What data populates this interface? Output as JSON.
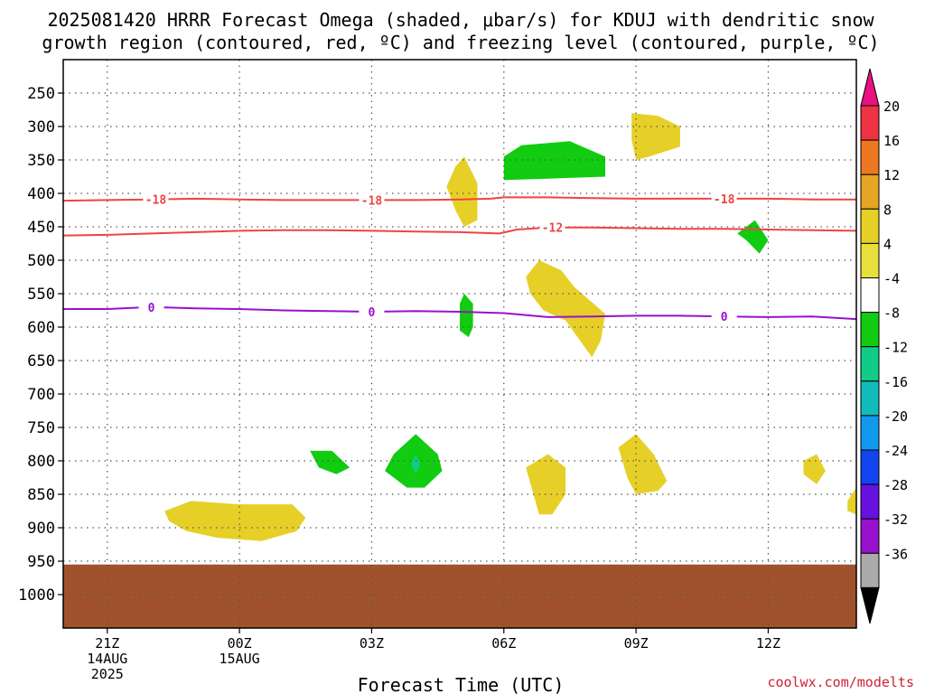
{
  "chart_data": {
    "type": "heatmap",
    "title_lines": [
      "2025081420 HRRR Forecast Omega (shaded, μbar/s) for KDUJ with dendritic snow",
      "growth region (contoured, red, ºC) and freezing level (contoured, purple, ºC)"
    ],
    "xlabel": "Forecast Time (UTC)",
    "credit": "coolwx.com/modelts",
    "x_ticks": [
      {
        "hour": 0,
        "lines": [
          "21Z",
          "14AUG",
          "2025"
        ]
      },
      {
        "hour": 3,
        "lines": [
          "00Z",
          "15AUG"
        ]
      },
      {
        "hour": 6,
        "lines": [
          "03Z"
        ]
      },
      {
        "hour": 9,
        "lines": [
          "06Z"
        ]
      },
      {
        "hour": 12,
        "lines": [
          "09Z"
        ]
      },
      {
        "hour": 15,
        "lines": [
          "12Z"
        ]
      }
    ],
    "xlim_hours": [
      -1,
      17
    ],
    "y_ticks": [
      250,
      300,
      350,
      400,
      450,
      500,
      550,
      600,
      650,
      700,
      750,
      800,
      850,
      900,
      950,
      1000
    ],
    "ylim_hpa": [
      200,
      1050
    ],
    "grid": true,
    "ground_top_hpa": 955,
    "colorbar": {
      "labels": [
        "20",
        "16",
        "12",
        "8",
        "4",
        "-4",
        "-8",
        "-12",
        "-16",
        "-20",
        "-24",
        "-28",
        "-32",
        "-36"
      ],
      "bins": [
        {
          "color": "#ee3344"
        },
        {
          "color": "#ee7722"
        },
        {
          "color": "#e6a522"
        },
        {
          "color": "#e6d028"
        },
        {
          "color": "#e8e03a"
        },
        {
          "color": "#ffffff"
        },
        {
          "color": "#11cc11"
        },
        {
          "color": "#11cc88"
        },
        {
          "color": "#11bbbb"
        },
        {
          "color": "#1199ee"
        },
        {
          "color": "#1144ee"
        },
        {
          "color": "#6611dd"
        },
        {
          "color": "#9911cc"
        },
        {
          "color": "#aaaaaa"
        }
      ],
      "top_arrow_color": "#e8117f",
      "bottom_arrow_color": "#000000"
    },
    "contours": [
      {
        "label": "-18",
        "color": "#ee4444",
        "points": [
          [
            -1,
            411
          ],
          [
            0,
            410
          ],
          [
            1,
            409
          ],
          [
            2,
            408
          ],
          [
            3,
            409
          ],
          [
            4,
            410
          ],
          [
            5,
            410
          ],
          [
            6,
            410
          ],
          [
            7,
            410
          ],
          [
            8,
            409
          ],
          [
            8.7,
            408
          ],
          [
            9,
            406
          ],
          [
            10,
            406
          ],
          [
            11,
            407
          ],
          [
            12,
            408
          ],
          [
            13,
            408
          ],
          [
            14,
            408
          ],
          [
            15,
            408
          ],
          [
            16,
            409
          ],
          [
            17,
            409
          ]
        ],
        "label_hours": [
          1.1,
          6.0,
          14.0
        ]
      },
      {
        "label": "-12",
        "color": "#ee4444",
        "points": [
          [
            -1,
            463
          ],
          [
            0,
            462
          ],
          [
            1,
            460
          ],
          [
            2,
            458
          ],
          [
            3,
            456
          ],
          [
            4,
            455
          ],
          [
            5,
            455
          ],
          [
            6,
            456
          ],
          [
            7,
            457
          ],
          [
            8,
            458
          ],
          [
            8.9,
            460
          ],
          [
            9.3,
            454
          ],
          [
            10,
            451
          ],
          [
            11,
            451
          ],
          [
            12,
            452
          ],
          [
            13,
            453
          ],
          [
            14,
            453
          ],
          [
            15,
            454
          ],
          [
            16,
            455
          ],
          [
            17,
            456
          ]
        ],
        "label_hours": [
          10.1
        ]
      },
      {
        "label": "0",
        "color": "#9911cc",
        "points": [
          [
            -1,
            573
          ],
          [
            0,
            573
          ],
          [
            1,
            570
          ],
          [
            2,
            572
          ],
          [
            3,
            573
          ],
          [
            4,
            575
          ],
          [
            5,
            576
          ],
          [
            6,
            577
          ],
          [
            7,
            576
          ],
          [
            8,
            577
          ],
          [
            9,
            579
          ],
          [
            10,
            585
          ],
          [
            11,
            584
          ],
          [
            12,
            583
          ],
          [
            13,
            583
          ],
          [
            14,
            584
          ],
          [
            15,
            585
          ],
          [
            16,
            584
          ],
          [
            17,
            588
          ]
        ],
        "label_hours": [
          1.0,
          6.0,
          14.0
        ]
      }
    ],
    "shaded_regions": [
      {
        "value": 6,
        "points": [
          [
            8.1,
            345
          ],
          [
            8.4,
            385
          ],
          [
            8.4,
            440
          ],
          [
            8.1,
            450
          ],
          [
            7.9,
            425
          ],
          [
            7.7,
            390
          ],
          [
            7.9,
            360
          ]
        ]
      },
      {
        "value": -6,
        "points": [
          [
            9.0,
            345
          ],
          [
            9.4,
            328
          ],
          [
            10.5,
            322
          ],
          [
            11.3,
            345
          ],
          [
            11.3,
            375
          ],
          [
            10.0,
            378
          ],
          [
            9.0,
            380
          ]
        ]
      },
      {
        "value": 6,
        "points": [
          [
            11.9,
            280
          ],
          [
            12.5,
            284
          ],
          [
            13.0,
            300
          ],
          [
            13.0,
            330
          ],
          [
            12.3,
            345
          ],
          [
            12.0,
            350
          ],
          [
            11.9,
            320
          ]
        ]
      },
      {
        "value": -6,
        "points": [
          [
            14.5,
            470
          ],
          [
            14.3,
            460
          ],
          [
            14.7,
            440
          ],
          [
            15.0,
            470
          ],
          [
            14.8,
            490
          ]
        ]
      },
      {
        "value": 6,
        "points": [
          [
            9.5,
            525
          ],
          [
            9.8,
            500
          ],
          [
            10.3,
            515
          ],
          [
            10.6,
            540
          ],
          [
            11.3,
            580
          ],
          [
            11.2,
            620
          ],
          [
            11.0,
            645
          ],
          [
            10.4,
            590
          ],
          [
            9.9,
            575
          ],
          [
            9.6,
            550
          ]
        ]
      },
      {
        "value": -6,
        "points": [
          [
            8.0,
            565
          ],
          [
            8.1,
            550
          ],
          [
            8.3,
            565
          ],
          [
            8.3,
            600
          ],
          [
            8.2,
            615
          ],
          [
            8.0,
            605
          ]
        ]
      },
      {
        "value": -6,
        "points": [
          [
            4.6,
            785
          ],
          [
            5.1,
            785
          ],
          [
            5.5,
            810
          ],
          [
            5.2,
            820
          ],
          [
            4.8,
            810
          ]
        ]
      },
      {
        "value": -6,
        "points": [
          [
            6.3,
            815
          ],
          [
            6.5,
            790
          ],
          [
            7.0,
            760
          ],
          [
            7.5,
            790
          ],
          [
            7.6,
            815
          ],
          [
            7.2,
            840
          ],
          [
            6.8,
            840
          ]
        ]
      },
      {
        "value": -10,
        "points": [
          [
            6.9,
            805
          ],
          [
            7.0,
            790
          ],
          [
            7.1,
            805
          ],
          [
            7.0,
            820
          ]
        ]
      },
      {
        "value": 6,
        "points": [
          [
            9.5,
            810
          ],
          [
            10.0,
            790
          ],
          [
            10.4,
            810
          ],
          [
            10.4,
            850
          ],
          [
            10.1,
            880
          ],
          [
            9.8,
            880
          ]
        ]
      },
      {
        "value": 6,
        "points": [
          [
            11.6,
            780
          ],
          [
            12.0,
            760
          ],
          [
            12.4,
            790
          ],
          [
            12.7,
            830
          ],
          [
            12.5,
            845
          ],
          [
            12.0,
            850
          ],
          [
            11.8,
            825
          ]
        ]
      },
      {
        "value": 6,
        "points": [
          [
            15.8,
            800
          ],
          [
            16.1,
            790
          ],
          [
            16.3,
            815
          ],
          [
            16.1,
            835
          ],
          [
            15.8,
            820
          ]
        ]
      },
      {
        "value": 6,
        "points": [
          [
            16.8,
            860
          ],
          [
            17.0,
            840
          ],
          [
            17.0,
            880
          ],
          [
            16.8,
            875
          ]
        ]
      },
      {
        "value": 6,
        "points": [
          [
            1.3,
            875
          ],
          [
            1.9,
            860
          ],
          [
            3.0,
            865
          ],
          [
            4.2,
            865
          ],
          [
            4.5,
            885
          ],
          [
            4.3,
            905
          ],
          [
            3.5,
            920
          ],
          [
            2.5,
            915
          ],
          [
            1.8,
            905
          ],
          [
            1.4,
            890
          ]
        ]
      }
    ]
  }
}
